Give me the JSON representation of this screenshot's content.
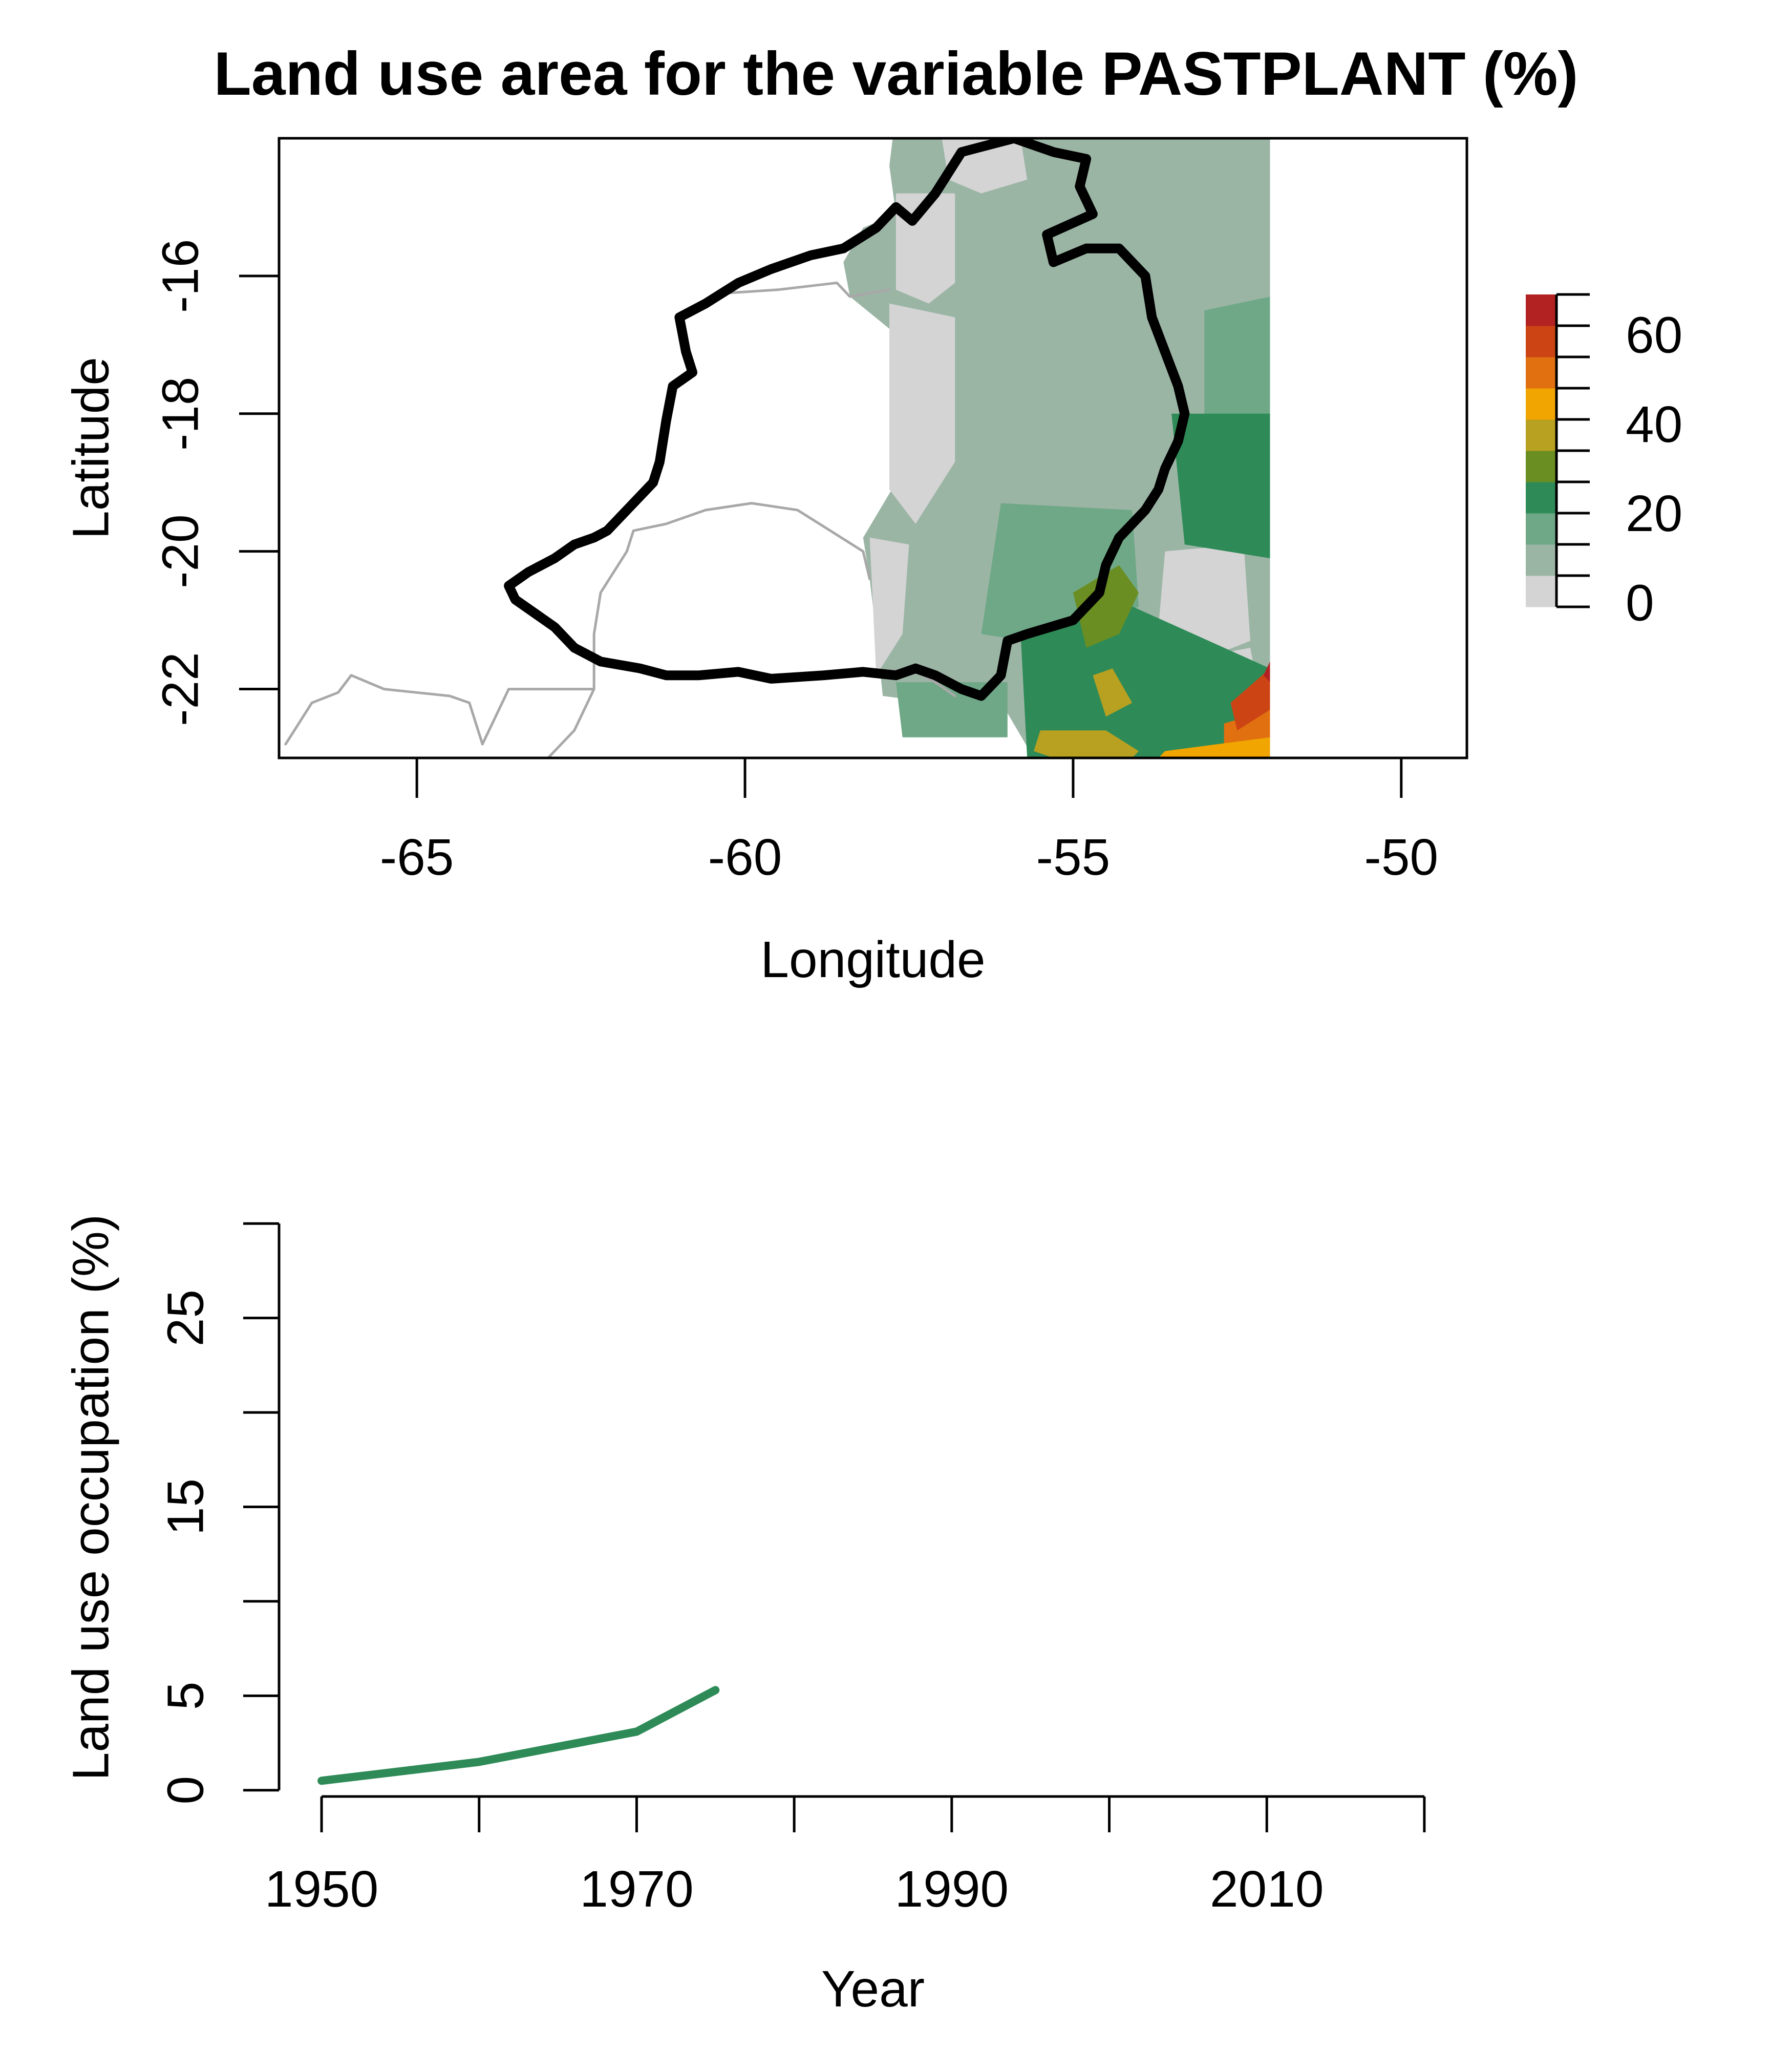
{
  "chart_data": [
    {
      "type": "heatmap",
      "title": "Land use area for the variable PASTPLANT (%)",
      "xlabel": "Longitude",
      "ylabel": "Latitude",
      "x_ticks": [
        -65,
        -60,
        -55,
        -50
      ],
      "y_ticks": [
        -16,
        -18,
        -20,
        -22
      ],
      "xlim": [
        -67.1,
        -49
      ],
      "ylim": [
        -23,
        -14
      ],
      "legend_ticks": [
        0,
        20,
        40,
        60
      ],
      "legend_range": [
        0,
        70
      ],
      "legend_placement": "right",
      "colors": {
        "missing": "#d4d4d4",
        "level_1": "#9bb5a5",
        "level_2": "#6fa887",
        "level_3": "#2e8b57",
        "level_4": "#6b8e23",
        "level_5": "#b8a020",
        "level_6": "#f0a500",
        "level_7": "#e07010",
        "level_8": "#cc4414",
        "level_9": "#b22222",
        "basin_outline": "#000000",
        "country_borders": "#a8a8a8"
      }
    },
    {
      "type": "line",
      "xlabel": "Year",
      "ylabel": "Land use occupation (%)",
      "x_ticks": [
        1950,
        1970,
        1990,
        2010
      ],
      "x_minor_ticks": [
        1960,
        1980,
        2000,
        2020
      ],
      "y_ticks": [
        0,
        5,
        15,
        25
      ],
      "y_minor_ticks": [
        10,
        20,
        30
      ],
      "xlim": [
        1947.3,
        2022.7
      ],
      "ylim": [
        -1.2,
        31.2
      ],
      "series": [
        {
          "x": [
            1950,
            1955,
            1960,
            1965,
            1970,
            1975
          ],
          "values": [
            0.5,
            1.0,
            1.5,
            2.3,
            3.1,
            5.3
          ],
          "color": "#2e8b57"
        }
      ]
    }
  ]
}
